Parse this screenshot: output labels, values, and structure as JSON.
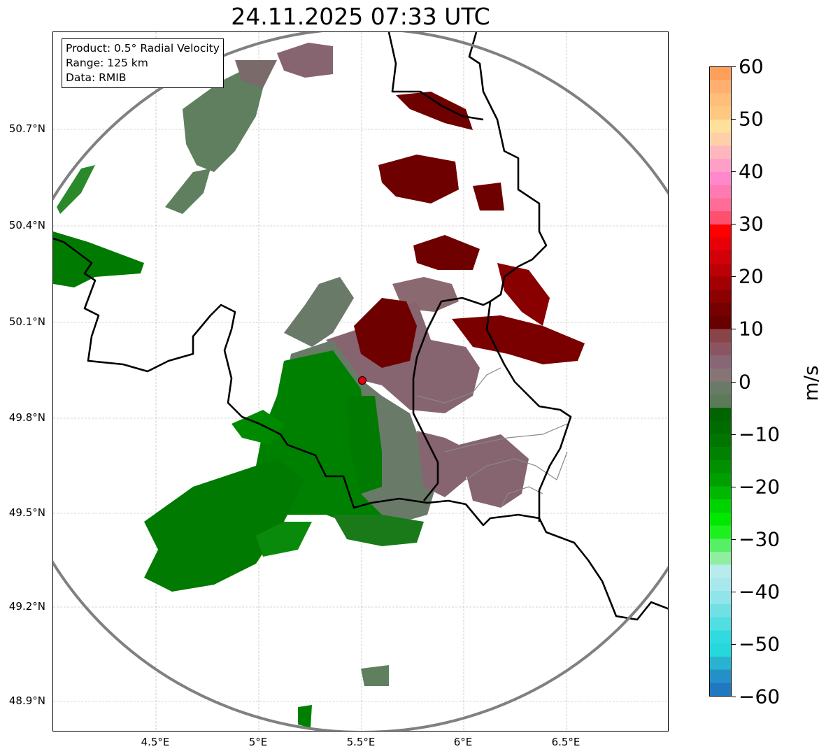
{
  "title": "24.11.2025 07:33 UTC",
  "info": {
    "product": "Product: 0.5° Radial Velocity",
    "range": "Range: 125 km",
    "source": "Data: RMIB"
  },
  "axes": {
    "lat_ticks": [
      "50.7°N",
      "50.4°N",
      "50.1°N",
      "49.8°N",
      "49.5°N",
      "49.2°N",
      "48.9°N"
    ],
    "lon_ticks": [
      "4.5°E",
      "5°E",
      "5.5°E",
      "6°E",
      "6.5°E"
    ]
  },
  "radar_site": {
    "lon": 5.5,
    "lat": 49.91,
    "marker_color": "#e8000b"
  },
  "colorbar": {
    "unit": "m/s",
    "min": -60,
    "max": 60,
    "tick_labels": [
      "60",
      "50",
      "40",
      "30",
      "20",
      "10",
      "0",
      "−10",
      "−20",
      "−30",
      "−40",
      "−50",
      "−60"
    ],
    "colors_top_to_bottom": [
      "#ff9f5a",
      "#ffb070",
      "#ffbf78",
      "#ffc882",
      "#ffe09a",
      "#ffd0a8",
      "#ffb6bd",
      "#ff9fc8",
      "#ff88cc",
      "#ff7ab0",
      "#ff6c96",
      "#ff4f6e",
      "#ff0000",
      "#e80008",
      "#d20008",
      "#bb0006",
      "#a30003",
      "#8c0000",
      "#770000",
      "#680000",
      "#884448",
      "#8a5560",
      "#886675",
      "#877575",
      "#6a7a68",
      "#5a7a58",
      "#006400",
      "#006c00",
      "#007600",
      "#008200",
      "#009000",
      "#009f00",
      "#00b800",
      "#00d400",
      "#00e800",
      "#1ef01e",
      "#55f065",
      "#90eea0",
      "#b8ebec",
      "#a8e8ec",
      "#90e4ea",
      "#70e0e4",
      "#50dee0",
      "#30dade",
      "#25d8dc",
      "#28b4d0",
      "#2590c8",
      "#2078c0"
    ]
  }
}
